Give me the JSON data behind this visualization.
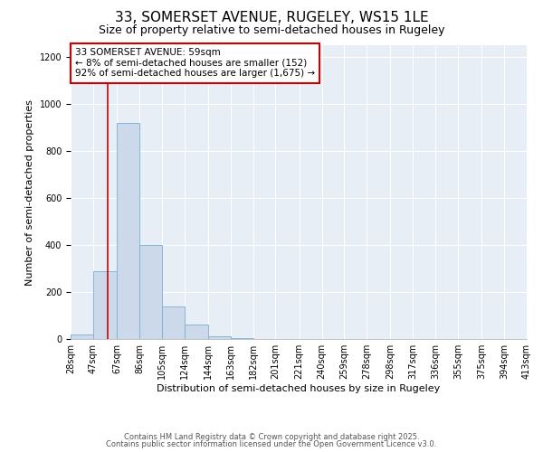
{
  "title1": "33, SOMERSET AVENUE, RUGELEY, WS15 1LE",
  "title2": "Size of property relative to semi-detached houses in Rugeley",
  "xlabel": "Distribution of semi-detached houses by size in Rugeley",
  "ylabel": "Number of semi-detached properties",
  "bin_edges": [
    28,
    47,
    67,
    86,
    105,
    124,
    144,
    163,
    182,
    201,
    221,
    240,
    259,
    278,
    298,
    317,
    336,
    355,
    375,
    394,
    413
  ],
  "bar_heights": [
    20,
    290,
    920,
    400,
    140,
    60,
    10,
    2,
    0,
    0,
    0,
    0,
    0,
    0,
    0,
    0,
    0,
    0,
    0,
    0
  ],
  "bar_color": "#ccd9ea",
  "bar_edge_color": "#7aafd4",
  "property_size": 59,
  "red_line_color": "#cc0000",
  "annotation_title": "33 SOMERSET AVENUE: 59sqm",
  "annotation_line1": "← 8% of semi-detached houses are smaller (152)",
  "annotation_line2": "92% of semi-detached houses are larger (1,675) →",
  "annotation_box_color": "#cc0000",
  "ylim": [
    0,
    1250
  ],
  "yticks": [
    0,
    200,
    400,
    600,
    800,
    1000,
    1200
  ],
  "background_color": "#e8eef5",
  "footer1": "Contains HM Land Registry data © Crown copyright and database right 2025.",
  "footer2": "Contains public sector information licensed under the Open Government Licence v3.0.",
  "title1_fontsize": 11,
  "title2_fontsize": 9,
  "xlabel_fontsize": 8,
  "ylabel_fontsize": 8,
  "tick_fontsize": 7,
  "annotation_fontsize": 7.5,
  "footer_fontsize": 6
}
